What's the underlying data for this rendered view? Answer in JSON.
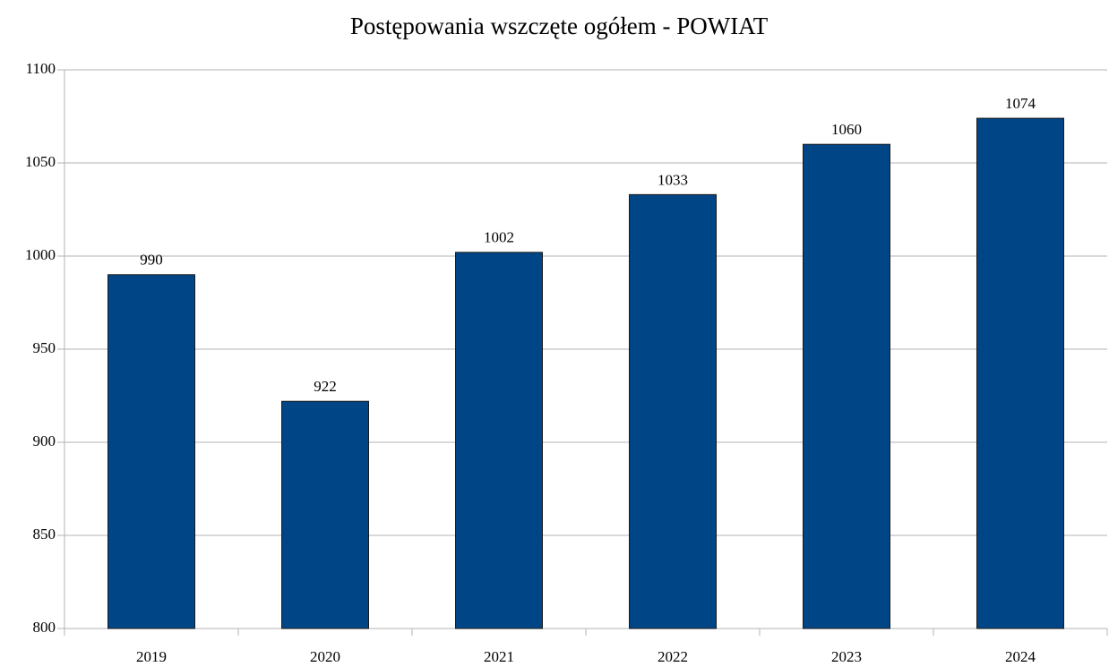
{
  "chart_data": {
    "type": "bar",
    "title": "Postępowania wszczęte ogółem - POWIAT",
    "categories": [
      "2019",
      "2020",
      "2021",
      "2022",
      "2023",
      "2024"
    ],
    "values": [
      990,
      922,
      1002,
      1033,
      1060,
      1074
    ],
    "color": "#004586",
    "ylim": [
      800,
      1100
    ],
    "yticks": [
      800,
      850,
      900,
      950,
      1000,
      1050,
      1100
    ],
    "grid": true
  }
}
